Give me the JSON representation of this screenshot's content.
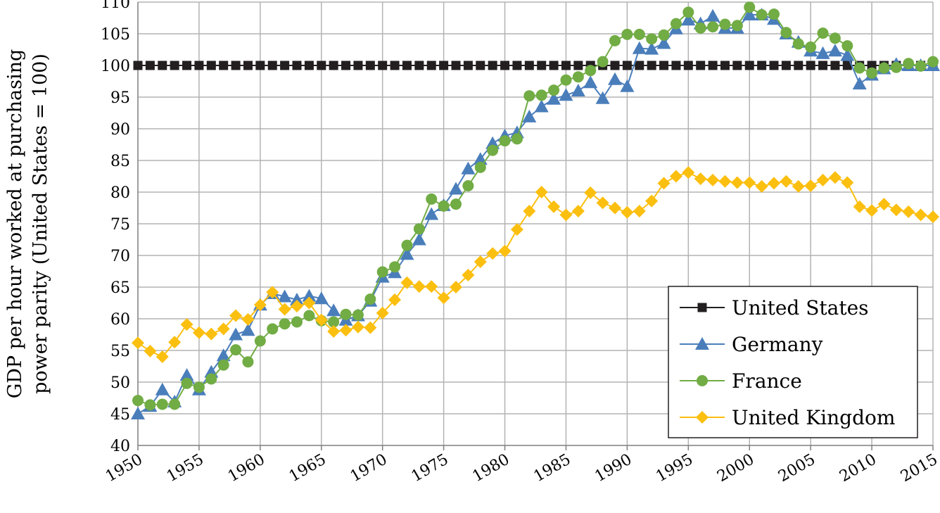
{
  "chart_data": {
    "type": "line",
    "ylabel_lines": [
      "GDP per hour worked at purchasing",
      "power parity (United States = 100)"
    ],
    "ylim": [
      40,
      110
    ],
    "y_ticks": [
      "40",
      "45",
      "50",
      "55",
      "60",
      "65",
      "70",
      "75",
      "80",
      "85",
      "90",
      "95",
      "100",
      "105",
      "110"
    ],
    "xlim": [
      1950,
      2015
    ],
    "x_ticks": [
      "1950",
      "1955",
      "1960",
      "1965",
      "1970",
      "1975",
      "1980",
      "1985",
      "1990",
      "1995",
      "2000",
      "2005",
      "2010",
      "2015"
    ],
    "grid": true,
    "legend_position": "bottom-right",
    "x_start": 1950,
    "series": [
      {
        "name": "United States",
        "color": "#231f20",
        "marker": "square",
        "values": [
          100,
          100,
          100,
          100,
          100,
          100,
          100,
          100,
          100,
          100,
          100,
          100,
          100,
          100,
          100,
          100,
          100,
          100,
          100,
          100,
          100,
          100,
          100,
          100,
          100,
          100,
          100,
          100,
          100,
          100,
          100,
          100,
          100,
          100,
          100,
          100,
          100,
          100,
          100,
          100,
          100,
          100,
          100,
          100,
          100,
          100,
          100,
          100,
          100,
          100,
          100,
          100,
          100,
          100,
          100,
          100,
          100,
          100,
          100,
          100,
          100,
          100,
          100,
          100,
          100,
          100
        ]
      },
      {
        "name": "Germany",
        "color": "#4a7ebb",
        "marker": "triangle",
        "values": [
          45.0,
          46.2,
          48.8,
          46.9,
          51.1,
          48.8,
          51.6,
          54.2,
          57.5,
          58.2,
          62.2,
          64.0,
          63.5,
          63.0,
          63.6,
          63.2,
          61.3,
          59.8,
          60.5,
          62.8,
          66.6,
          67.3,
          70.2,
          72.5,
          76.5,
          77.9,
          80.5,
          83.7,
          85.2,
          87.7,
          88.9,
          89.4,
          91.9,
          93.5,
          94.7,
          95.3,
          96.0,
          97.3,
          94.8,
          97.8,
          96.7,
          102.7,
          102.6,
          103.5,
          105.8,
          107.2,
          106.6,
          107.8,
          105.9,
          105.9,
          108.0,
          108.0,
          107.3,
          105.0,
          103.7,
          102.3,
          101.9,
          102.3,
          101.6,
          97.1,
          98.5,
          99.5,
          100.2,
          100.0,
          100.0,
          100.0
        ]
      },
      {
        "name": "France",
        "color": "#71ac44",
        "marker": "circle",
        "values": [
          47.1,
          46.4,
          46.5,
          46.5,
          49.8,
          49.2,
          50.5,
          52.7,
          55.1,
          53.2,
          56.5,
          58.4,
          59.2,
          59.5,
          60.5,
          59.7,
          59.5,
          60.7,
          60.6,
          63.1,
          67.4,
          68.2,
          71.6,
          74.2,
          78.9,
          77.8,
          78.1,
          81.0,
          83.9,
          86.6,
          88.1,
          88.4,
          95.2,
          95.3,
          96.1,
          97.7,
          98.2,
          99.2,
          100.6,
          103.9,
          104.9,
          104.9,
          104.2,
          104.8,
          106.6,
          108.4,
          105.9,
          106.1,
          106.5,
          106.3,
          109.2,
          108.0,
          108.1,
          105.2,
          103.4,
          102.9,
          105.1,
          104.3,
          103.1,
          99.6,
          98.8,
          99.6,
          99.7,
          100.3,
          99.9,
          100.6
        ]
      },
      {
        "name": "United Kingdom",
        "color": "#fbbf10",
        "marker": "diamond",
        "values": [
          56.2,
          54.9,
          54.0,
          56.3,
          59.1,
          57.8,
          57.6,
          58.4,
          60.5,
          59.9,
          62.2,
          64.2,
          61.5,
          62.0,
          62.5,
          59.8,
          58.0,
          58.2,
          58.7,
          58.6,
          60.9,
          63.0,
          65.7,
          65.1,
          65.1,
          63.3,
          65.0,
          66.9,
          69.0,
          70.3,
          70.7,
          74.1,
          77.0,
          80.0,
          77.7,
          76.4,
          77.0,
          79.9,
          78.3,
          77.5,
          76.8,
          77.0,
          78.6,
          81.4,
          82.5,
          83.1,
          82.1,
          81.9,
          81.7,
          81.5,
          81.5,
          80.9,
          81.4,
          81.7,
          80.9,
          81.0,
          81.9,
          82.3,
          81.5,
          77.7,
          77.1,
          78.1,
          77.2,
          76.9,
          76.4,
          76.1
        ]
      }
    ]
  }
}
